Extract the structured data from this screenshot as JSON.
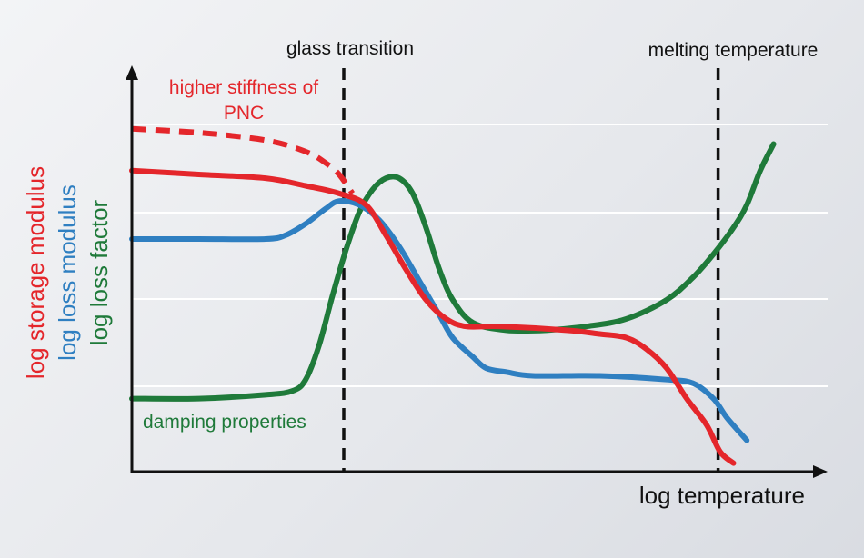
{
  "chart_data": {
    "type": "line",
    "title": "",
    "xlabel": "log temperature",
    "ylabels": [
      {
        "text": "log storage modulus",
        "color": "#e4262b"
      },
      {
        "text": "log loss modulus",
        "color": "#2f7fc1"
      },
      {
        "text": "log loss factor",
        "color": "#1f7a3a"
      }
    ],
    "xlim": [
      0,
      100
    ],
    "ylim": [
      0,
      100
    ],
    "grid": true,
    "vlines": [
      {
        "x": 31.7,
        "label": "glass transition"
      },
      {
        "x": 87.7,
        "label": "melting temperature"
      }
    ],
    "annotations": [
      {
        "text_lines": [
          "higher stiffness of",
          "PNC"
        ],
        "color": "#e4262b"
      },
      {
        "text_lines": [
          "damping properties"
        ],
        "color": "#1f7a3a"
      }
    ],
    "series": [
      {
        "color": "#e4262b",
        "style": "dashed",
        "points": [
          [
            0,
            90
          ],
          [
            10,
            89
          ],
          [
            20,
            87
          ],
          [
            26,
            84
          ],
          [
            29,
            81
          ],
          [
            31,
            78
          ],
          [
            33,
            73
          ]
        ]
      },
      {
        "color": "#e4262b",
        "style": "solid",
        "points": [
          [
            0,
            79
          ],
          [
            10,
            78
          ],
          [
            20,
            77
          ],
          [
            26,
            75
          ],
          [
            31,
            73
          ],
          [
            35,
            70
          ],
          [
            38,
            62
          ],
          [
            41,
            53
          ],
          [
            44,
            45
          ],
          [
            47,
            40
          ],
          [
            50,
            38
          ],
          [
            55,
            38
          ],
          [
            65,
            37
          ],
          [
            70,
            36
          ],
          [
            74,
            35
          ],
          [
            77,
            32
          ],
          [
            80,
            27
          ],
          [
            83,
            19
          ],
          [
            86,
            12
          ],
          [
            88,
            5
          ],
          [
            90,
            2
          ]
        ]
      },
      {
        "color": "#2f7fc1",
        "style": "solid",
        "points": [
          [
            0,
            61
          ],
          [
            10,
            61
          ],
          [
            20,
            61
          ],
          [
            23,
            62
          ],
          [
            26,
            65
          ],
          [
            29,
            69
          ],
          [
            31,
            71
          ],
          [
            34,
            70
          ],
          [
            37,
            66
          ],
          [
            40,
            59
          ],
          [
            43,
            50
          ],
          [
            46,
            41
          ],
          [
            48,
            35
          ],
          [
            51,
            30
          ],
          [
            53,
            27
          ],
          [
            56,
            26
          ],
          [
            60,
            25
          ],
          [
            70,
            25
          ],
          [
            80,
            24
          ],
          [
            84,
            23
          ],
          [
            87,
            19
          ],
          [
            89,
            14
          ],
          [
            92,
            8
          ]
        ]
      },
      {
        "color": "#1f7a3a",
        "style": "solid",
        "points": [
          [
            0,
            19
          ],
          [
            10,
            19
          ],
          [
            20,
            20
          ],
          [
            24,
            21
          ],
          [
            26,
            24
          ],
          [
            28,
            33
          ],
          [
            30,
            46
          ],
          [
            32,
            58
          ],
          [
            34,
            68
          ],
          [
            36,
            74
          ],
          [
            38,
            77
          ],
          [
            40,
            77
          ],
          [
            42,
            73
          ],
          [
            44,
            64
          ],
          [
            46,
            53
          ],
          [
            48,
            45
          ],
          [
            51,
            39
          ],
          [
            56,
            37
          ],
          [
            62,
            37
          ],
          [
            68,
            38
          ],
          [
            74,
            40
          ],
          [
            80,
            45
          ],
          [
            84,
            51
          ],
          [
            87,
            57
          ],
          [
            90,
            64
          ],
          [
            92,
            70
          ],
          [
            94,
            79
          ],
          [
            96,
            86
          ]
        ]
      }
    ]
  }
}
